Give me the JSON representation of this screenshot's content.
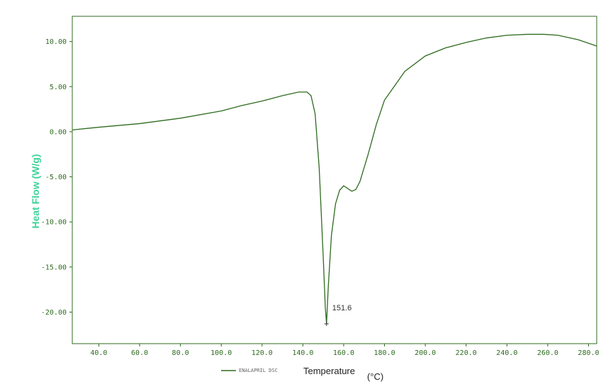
{
  "chart_data": {
    "type": "line",
    "title": "",
    "xlabel": "Temperature",
    "xunit": "(°C)",
    "ylabel": "Heat Flow (W/g)",
    "xlim": [
      27,
      284
    ],
    "ylim": [
      -23.5,
      12.8
    ],
    "x_ticks": [
      "40.0",
      "60.0",
      "80.0",
      "100.0",
      "120.0",
      "140.0",
      "160.0",
      "180.0",
      "200.0",
      "220.0",
      "240.0",
      "260.0",
      "280.0"
    ],
    "x_tick_values": [
      40,
      60,
      80,
      100,
      120,
      140,
      160,
      180,
      200,
      220,
      240,
      260,
      280
    ],
    "y_ticks": [
      "10.00",
      "5.00",
      "0.00",
      "-5.00",
      "-10.00",
      "-15.00",
      "-20.00"
    ],
    "y_tick_values": [
      10,
      5,
      0,
      -5,
      -10,
      -15,
      -20
    ],
    "grid": false,
    "legend_position": "bottom-left",
    "series": [
      {
        "name": "ENALAPRIL DSC",
        "color": "#2e6b1f",
        "x": [
          27,
          40,
          60,
          80,
          100,
          110,
          120,
          130,
          138,
          142,
          144,
          146,
          148,
          150,
          151,
          151.6,
          152.5,
          154,
          156,
          158,
          160,
          162,
          164,
          166,
          168,
          172,
          176,
          180,
          190,
          200,
          210,
          220,
          230,
          240,
          250,
          258,
          265,
          275,
          284
        ],
        "y": [
          0.2,
          0.5,
          0.9,
          1.5,
          2.3,
          2.9,
          3.4,
          4.0,
          4.4,
          4.4,
          4.0,
          2.0,
          -4.0,
          -14.0,
          -19.5,
          -21.3,
          -17.0,
          -11.5,
          -8.0,
          -6.5,
          -6.0,
          -6.3,
          -6.6,
          -6.4,
          -5.5,
          -2.5,
          0.8,
          3.5,
          6.7,
          8.4,
          9.3,
          9.9,
          10.4,
          10.7,
          10.8,
          10.8,
          10.7,
          10.2,
          9.5
        ]
      }
    ],
    "annotations": [
      {
        "text": "151.6",
        "x": 151.6,
        "y": -21.3
      }
    ]
  }
}
